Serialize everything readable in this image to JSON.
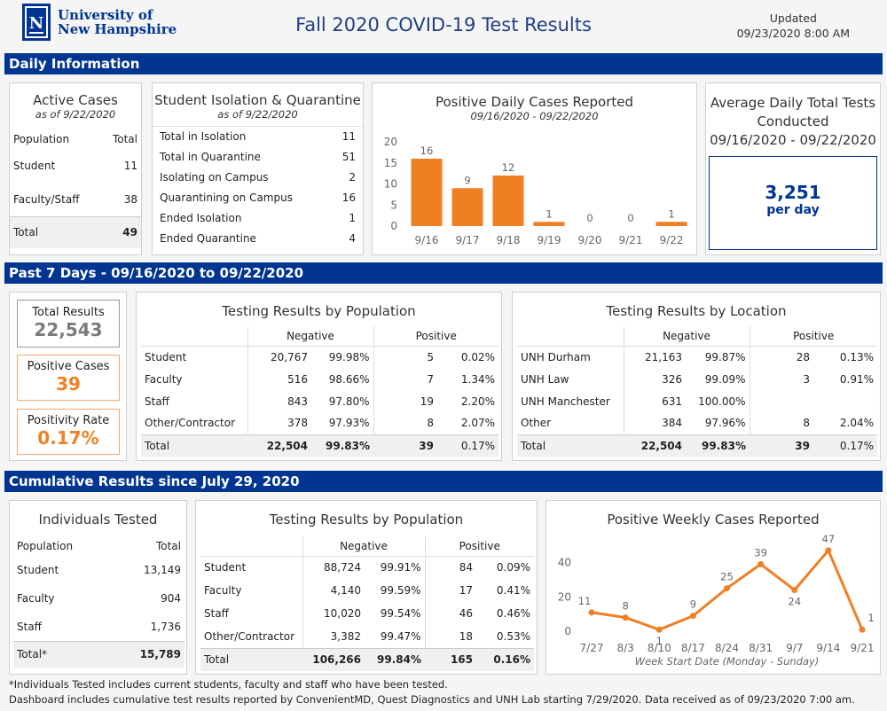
{
  "header": {
    "university_line1": "University of",
    "university_line2": "New Hampshire",
    "title": "Fall 2020 COVID-19 Test Results",
    "updated_label": "Updated",
    "updated_time": "09/23/2020 8:00 AM"
  },
  "sections": {
    "daily": "Daily Information",
    "past7": "Past 7 Days  - 09/16/2020  to 09/22/2020",
    "cumulative": "Cumulative Results since July 29, 2020"
  },
  "active_cases": {
    "title": "Active Cases",
    "subtitle": "as of 9/22/2020",
    "col_population": "Population",
    "col_total": "Total",
    "rows": [
      {
        "label": "Student",
        "value": "11"
      },
      {
        "label": "Faculty/Staff",
        "value": "38"
      }
    ],
    "total_label": "Total",
    "total_value": "49"
  },
  "isolation": {
    "title": "Student Isolation & Quarantine",
    "subtitle": "as of 9/22/2020",
    "rows": [
      {
        "label": "Total in Isolation",
        "value": "11"
      },
      {
        "label": "Total in Quarantine",
        "value": "51"
      },
      {
        "label": "Isolating on Campus",
        "value": "2"
      },
      {
        "label": "Quarantining on Campus",
        "value": "16"
      },
      {
        "label": "Ended Isolation",
        "value": "1"
      },
      {
        "label": "Ended Quarantine",
        "value": "4"
      }
    ]
  },
  "avg_tests": {
    "title_line1": "Average Daily Total Tests",
    "title_line2": "Conducted",
    "title_line3": "09/16/2020 - 09/22/2020",
    "value": "3,251",
    "unit": "per day"
  },
  "chart_data": [
    {
      "type": "bar",
      "title": "Positive Daily Cases Reported",
      "subtitle": "09/16/2020  - 09/22/2020",
      "categories": [
        "9/16",
        "9/17",
        "9/18",
        "9/19",
        "9/20",
        "9/21",
        "9/22"
      ],
      "values": [
        16,
        9,
        12,
        1,
        0,
        0,
        1
      ],
      "yticks": [
        0,
        5,
        10,
        15,
        20
      ],
      "ylim": [
        0,
        20
      ],
      "color": "#f07f24"
    },
    {
      "type": "line",
      "title": "Positive Weekly Cases Reported",
      "xlabel": "Week Start Date (Monday - Sunday)",
      "categories": [
        "7/27",
        "8/3",
        "8/10",
        "8/17",
        "8/24",
        "8/31",
        "9/7",
        "9/14",
        "9/21"
      ],
      "values": [
        11,
        8,
        1,
        9,
        25,
        39,
        24,
        47,
        1
      ],
      "yticks": [
        0,
        20,
        40
      ],
      "ylim": [
        -3,
        50
      ],
      "color": "#f07f24"
    }
  ],
  "past7": {
    "total_results_label": "Total Results",
    "total_results_value": "22,543",
    "positive_cases_label": "Positive Cases",
    "positive_cases_value": "39",
    "positivity_label": "Positivity Rate",
    "positivity_value": "0.17%",
    "by_population": {
      "title": "Testing Results by Population",
      "col_negative": "Negative",
      "col_positive": "Positive",
      "rows": [
        {
          "label": "Student",
          "neg": "20,767",
          "neg_pct": "99.98%",
          "pos": "5",
          "pos_pct": "0.02%"
        },
        {
          "label": "Faculty",
          "neg": "516",
          "neg_pct": "98.66%",
          "pos": "7",
          "pos_pct": "1.34%"
        },
        {
          "label": "Staff",
          "neg": "843",
          "neg_pct": "97.80%",
          "pos": "19",
          "pos_pct": "2.20%"
        },
        {
          "label": "Other/Contractor",
          "neg": "378",
          "neg_pct": "97.93%",
          "pos": "8",
          "pos_pct": "2.07%"
        }
      ],
      "total": {
        "label": "Total",
        "neg": "22,504",
        "neg_pct": "99.83%",
        "pos": "39",
        "pos_pct": "0.17%"
      }
    },
    "by_location": {
      "title": "Testing Results by Location",
      "col_negative": "Negative",
      "col_positive": "Positive",
      "rows": [
        {
          "label": "UNH Durham",
          "neg": "21,163",
          "neg_pct": "99.87%",
          "pos": "28",
          "pos_pct": "0.13%"
        },
        {
          "label": "UNH Law",
          "neg": "326",
          "neg_pct": "99.09%",
          "pos": "3",
          "pos_pct": "0.91%"
        },
        {
          "label": "UNH Manchester",
          "neg": "631",
          "neg_pct": "100.00%",
          "pos": "",
          "pos_pct": ""
        },
        {
          "label": "Other",
          "neg": "384",
          "neg_pct": "97.96%",
          "pos": "8",
          "pos_pct": "2.04%"
        }
      ],
      "total": {
        "label": "Total",
        "neg": "22,504",
        "neg_pct": "99.83%",
        "pos": "39",
        "pos_pct": "0.17%"
      }
    }
  },
  "cumulative": {
    "individuals": {
      "title": "Individuals Tested",
      "col_population": "Population",
      "col_total": "Total",
      "rows": [
        {
          "label": "Student",
          "value": "13,149"
        },
        {
          "label": "Faculty",
          "value": "904"
        },
        {
          "label": "Staff",
          "value": "1,736"
        }
      ],
      "total_label": "Total*",
      "total_value": "15,789"
    },
    "by_population": {
      "title": "Testing Results by Population",
      "col_negative": "Negative",
      "col_positive": "Positive",
      "rows": [
        {
          "label": "Student",
          "neg": "88,724",
          "neg_pct": "99.91%",
          "pos": "84",
          "pos_pct": "0.09%"
        },
        {
          "label": "Faculty",
          "neg": "4,140",
          "neg_pct": "99.59%",
          "pos": "17",
          "pos_pct": "0.41%"
        },
        {
          "label": "Staff",
          "neg": "10,020",
          "neg_pct": "99.54%",
          "pos": "46",
          "pos_pct": "0.46%"
        },
        {
          "label": "Other/Contractor",
          "neg": "3,382",
          "neg_pct": "99.47%",
          "pos": "18",
          "pos_pct": "0.53%"
        }
      ],
      "total": {
        "label": "Total",
        "neg": "106,266",
        "neg_pct": "99.84%",
        "pos": "165",
        "pos_pct": "0.16%"
      }
    }
  },
  "footnotes": {
    "line1": "*Individuals Tested includes current students, faculty and staff who have been tested.",
    "line2": "Dashboard includes cumulative test results reported by ConvenientMD, Quest Diagnostics and UNH Lab starting 7/29/2020.  Data received as of 09/23/2020 7:00 am."
  },
  "colors": {
    "navy": "#003591",
    "orange": "#f07f24",
    "gray_value": "#777777"
  }
}
